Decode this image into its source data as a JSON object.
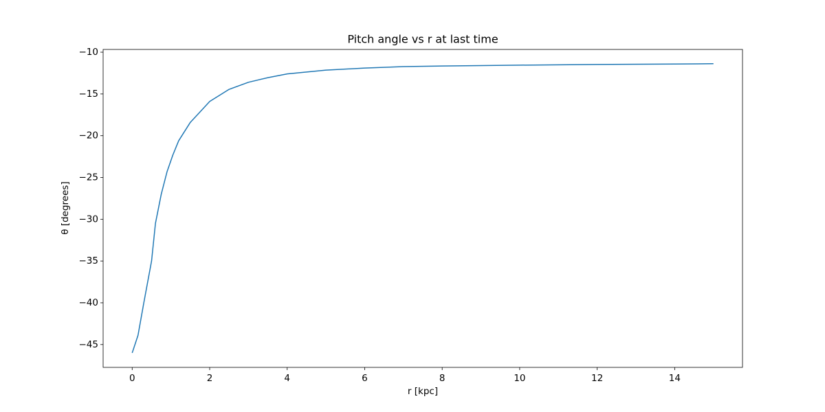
{
  "chart_data": {
    "type": "line",
    "title": "Pitch angle vs r at last time",
    "xlabel": "r [kpc]",
    "ylabel": "θ [degrees]",
    "x": [
      0,
      0.15,
      0.3,
      0.5,
      0.6,
      0.75,
      0.9,
      1.05,
      1.2,
      1.5,
      1.8,
      2.0,
      2.5,
      3,
      3.5,
      4,
      5,
      6,
      7,
      8,
      10,
      12,
      14,
      15
    ],
    "series": [
      {
        "color": "#1f77b4",
        "values": [
          -46,
          -43.9,
          -40,
          -35,
          -30.5,
          -27,
          -24.3,
          -22.3,
          -20.6,
          -18.4,
          -16.9,
          -15.9,
          -14.45,
          -13.6,
          -13.05,
          -12.6,
          -12.15,
          -11.9,
          -11.73,
          -11.65,
          -11.55,
          -11.47,
          -11.42,
          -11.38
        ]
      }
    ],
    "xlim": [
      -0.75,
      15.75
    ],
    "ylim": [
      -47.73,
      -9.67
    ],
    "xticks": [
      0,
      2,
      4,
      6,
      8,
      10,
      12,
      14
    ],
    "yticks": [
      {
        "value": -45,
        "label": "−45"
      },
      {
        "value": -40,
        "label": "−40"
      },
      {
        "value": -35,
        "label": "−35"
      },
      {
        "value": -30,
        "label": "−30"
      },
      {
        "value": -25,
        "label": "−25"
      },
      {
        "value": -20,
        "label": "−20"
      },
      {
        "value": -15,
        "label": "−15"
      },
      {
        "value": -10,
        "label": "−10"
      }
    ],
    "grid": false
  }
}
